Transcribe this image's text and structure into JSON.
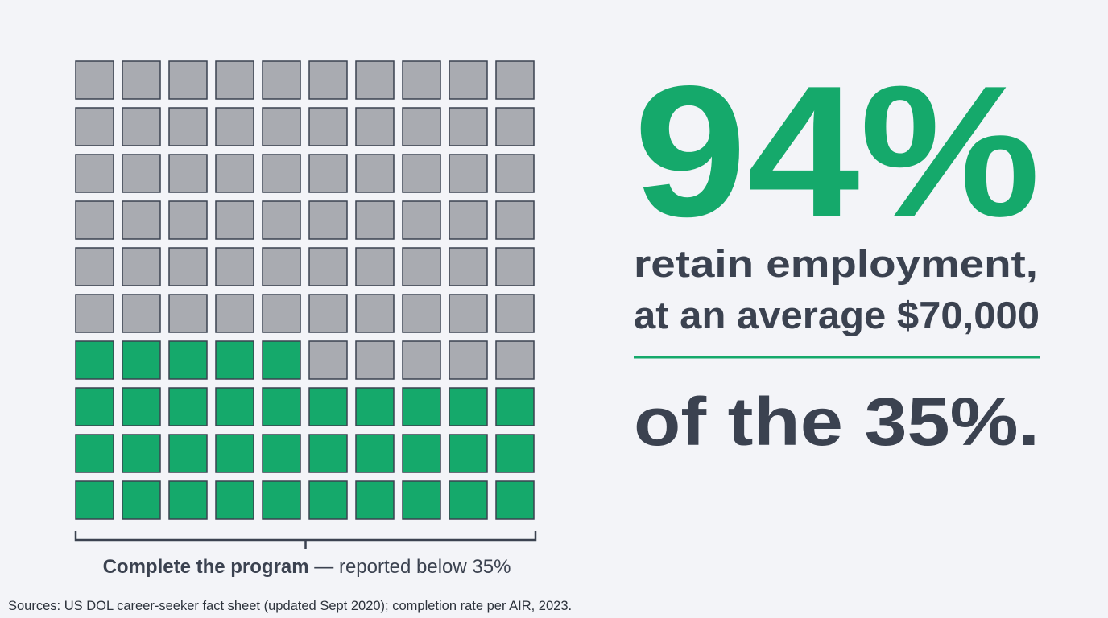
{
  "chart_data": {
    "type": "waffle",
    "total": 100,
    "columns": 10,
    "value": 35,
    "color": "#15a96b",
    "empty_color": "#a9abb1",
    "caption": {
      "bold": "Complete the program",
      "rest": " — reported below 35%"
    },
    "headline": "94%",
    "lines": [
      "retain employment,",
      "at an average $70,000"
    ],
    "closing": "of the 35%.",
    "source": "Sources: US DOL career-seeker fact sheet (updated Sept 2020); completion rate per AIR, 2023."
  }
}
